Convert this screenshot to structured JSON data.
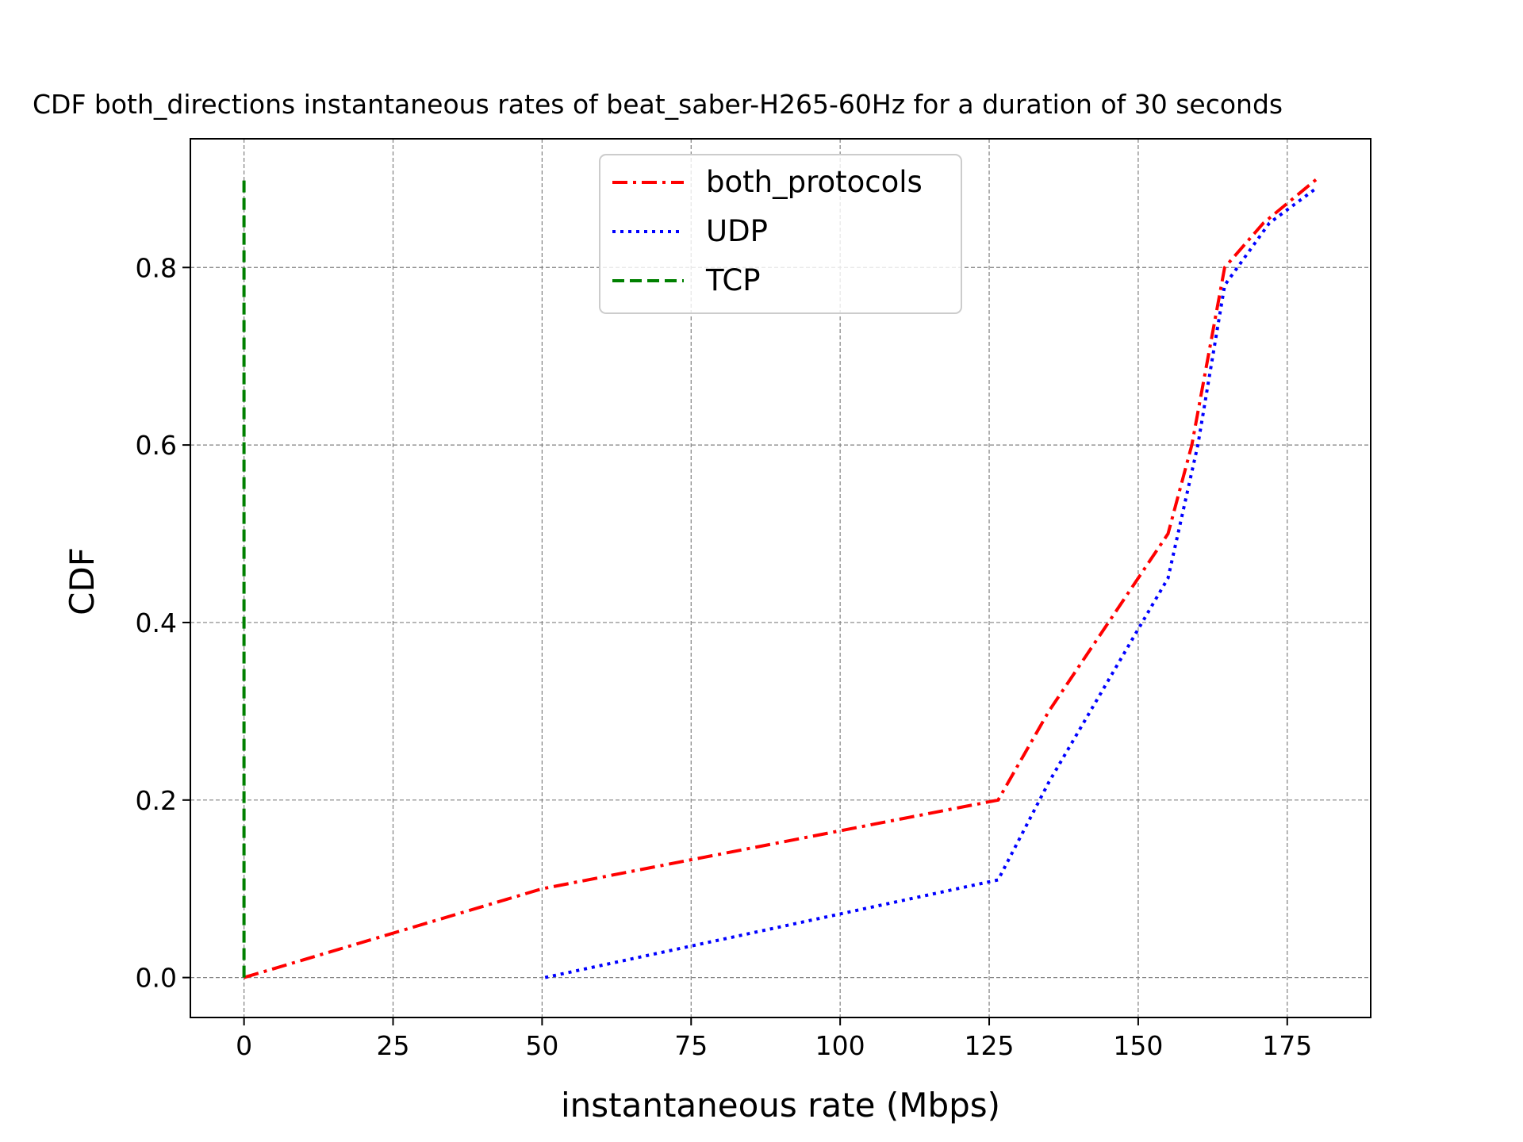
{
  "chart_data": {
    "type": "line",
    "title": "CDF both_directions instantaneous rates of beat_saber-H265-60Hz for a duration of 30 seconds",
    "xlabel": "instantaneous rate (Mbps)",
    "ylabel": "CDF",
    "xlim": [
      -9,
      189
    ],
    "ylim": [
      -0.045,
      0.945
    ],
    "xticks": [
      0,
      25,
      50,
      75,
      100,
      125,
      150,
      175
    ],
    "yticks": [
      0.0,
      0.2,
      0.4,
      0.6,
      0.8
    ],
    "xtick_labels": [
      "0",
      "25",
      "50",
      "75",
      "100",
      "125",
      "150",
      "175"
    ],
    "ytick_labels": [
      "0.0",
      "0.2",
      "0.4",
      "0.6",
      "0.8"
    ],
    "grid": true,
    "legend": "upper center",
    "series": [
      {
        "name": "both_protocols",
        "color": "#ff0000",
        "style": "dashdot",
        "x": [
          0,
          50,
          126.5,
          135,
          155,
          159,
          164.5,
          171,
          180
        ],
        "y": [
          0.0,
          0.1,
          0.2,
          0.3,
          0.5,
          0.6,
          0.8,
          0.85,
          0.9
        ]
      },
      {
        "name": "UDP",
        "color": "#0000ff",
        "style": "dotted",
        "x": [
          50.5,
          126.5,
          135,
          155,
          160,
          164.5,
          172,
          180
        ],
        "y": [
          0.0,
          0.11,
          0.22,
          0.45,
          0.6,
          0.78,
          0.85,
          0.89
        ]
      },
      {
        "name": "TCP",
        "color": "#008000",
        "style": "dashed",
        "x": [
          0,
          0
        ],
        "y": [
          0.0,
          0.9
        ]
      }
    ]
  }
}
